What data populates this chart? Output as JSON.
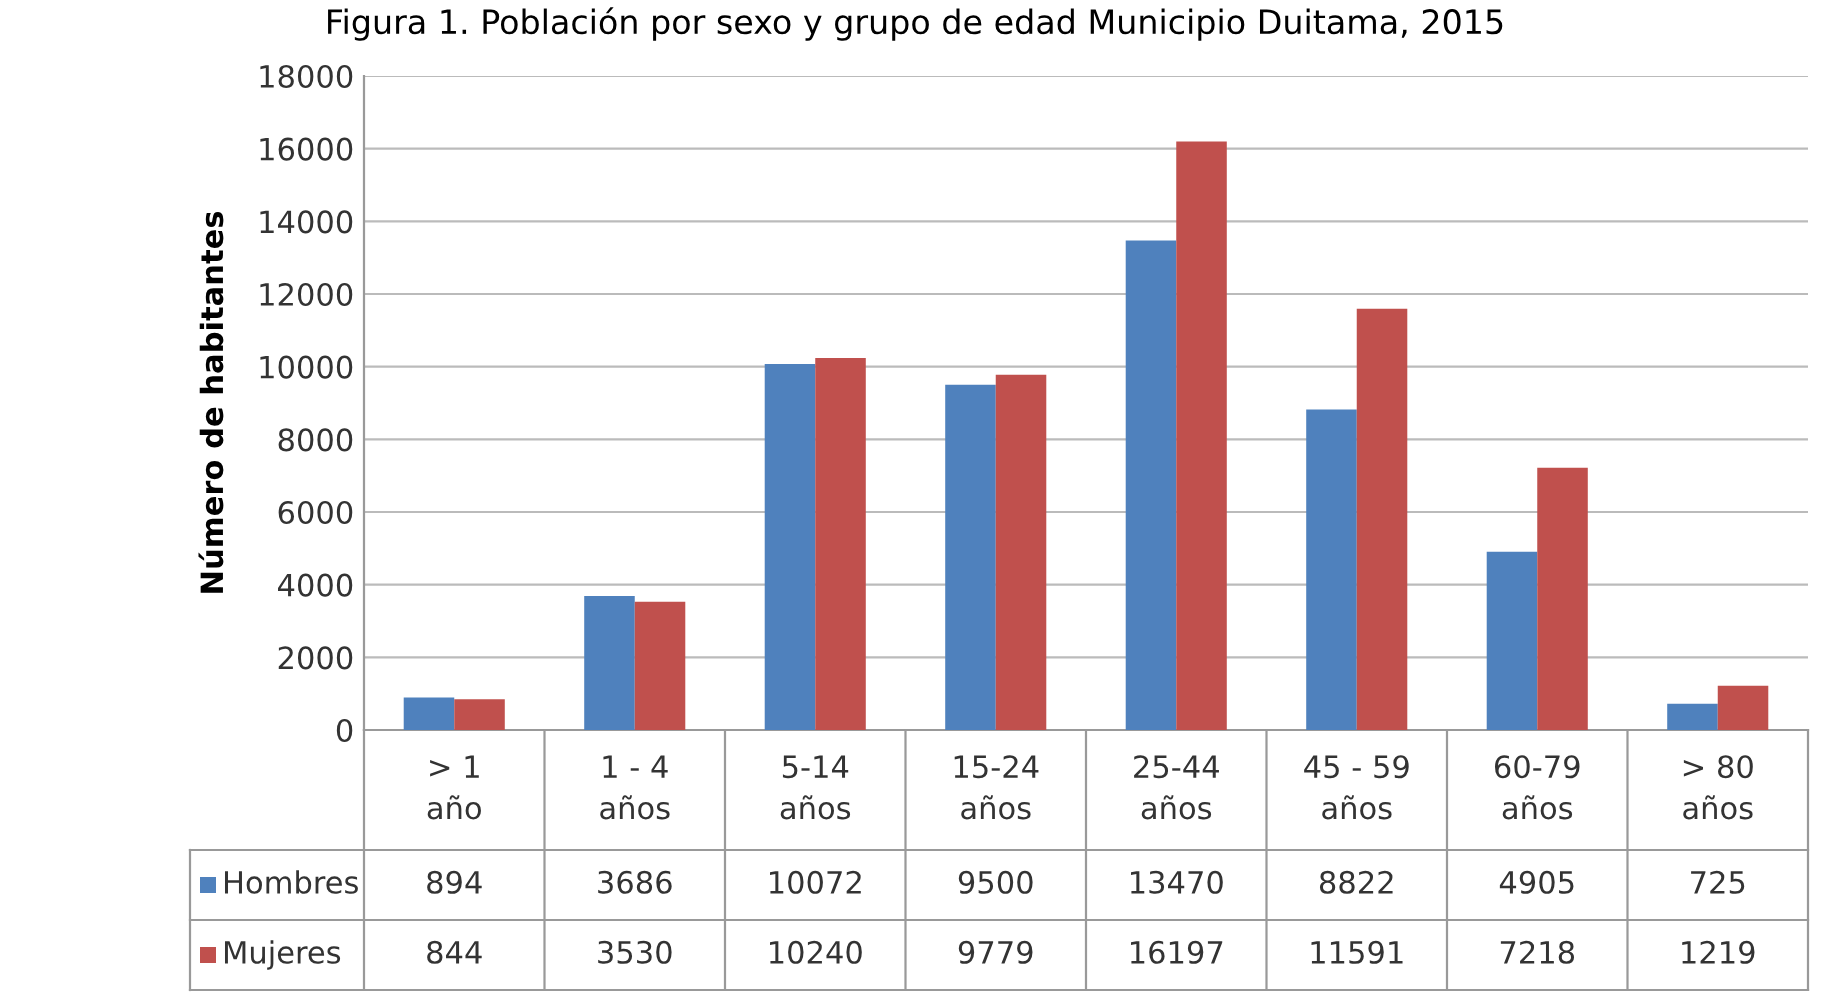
{
  "chart_data": {
    "type": "bar",
    "title": "Figura 1. Población por sexo y grupo de edad Municipio Duitama, 2015",
    "ylabel": "Número de habitantes",
    "categories": [
      "> 1\naño",
      "1 - 4\naños",
      "5-14\naños",
      "15-24\naños",
      "25-44\naños",
      "45 - 59\naños",
      "60-79\naños",
      "> 80\naños"
    ],
    "series": [
      {
        "name": "Hombres",
        "color": "#4f81bd",
        "values": [
          894,
          3686,
          10072,
          9500,
          13470,
          8822,
          4905,
          725
        ]
      },
      {
        "name": "Mujeres",
        "color": "#c0504d",
        "values": [
          844,
          3530,
          10240,
          9779,
          16197,
          11591,
          7218,
          1219
        ]
      }
    ],
    "ylim": [
      0,
      18000
    ],
    "yticks": [
      0,
      2000,
      4000,
      6000,
      8000,
      10000,
      12000,
      14000,
      16000,
      18000
    ],
    "grid": "y",
    "legend": "bottom left",
    "data_labels": true
  }
}
